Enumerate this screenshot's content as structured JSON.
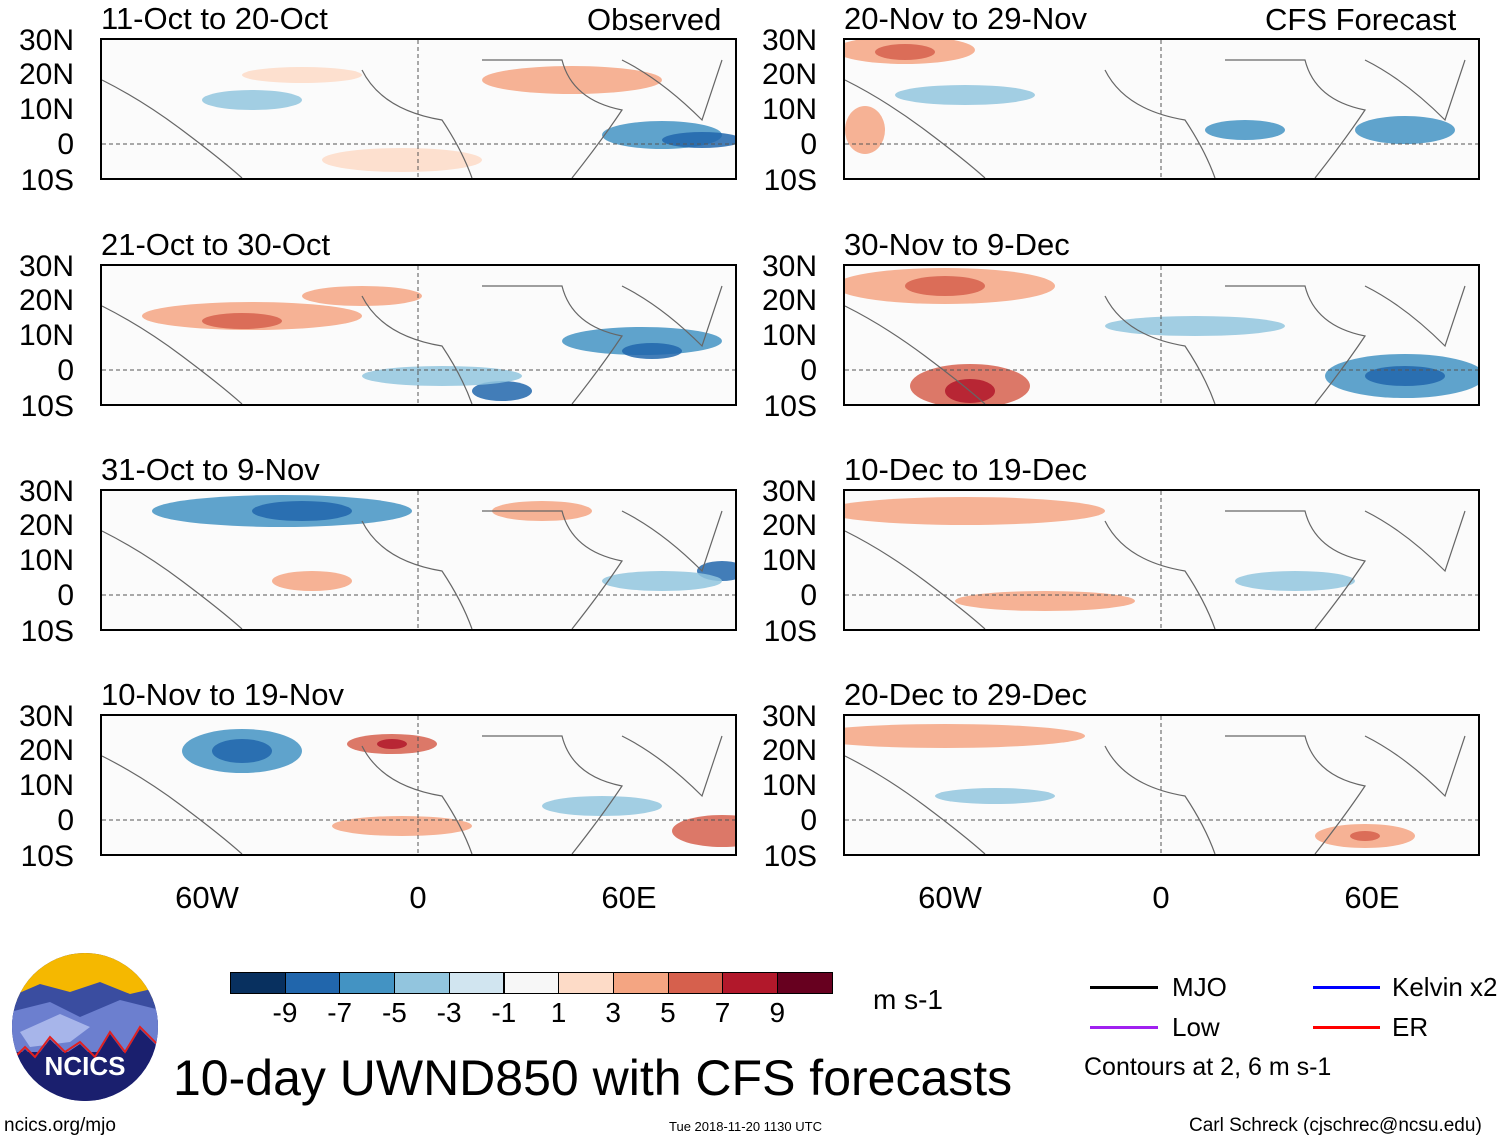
{
  "figure": {
    "title": "10-day UWND850 with CFS forecasts",
    "url": "ncics.org/mjo",
    "timestamp": "Tue 2018-11-20 1130 UTC",
    "author": "Carl Schreck (cjschrec@ncsu.edu)",
    "logo_text": "NCICS"
  },
  "columns": {
    "left_label": "Observed",
    "right_label": "CFS Forecast"
  },
  "panels": [
    {
      "title": "11-Oct to 20-Oct",
      "type": "observed"
    },
    {
      "title": "21-Oct to 30-Oct",
      "type": "observed"
    },
    {
      "title": "31-Oct to 9-Nov",
      "type": "observed"
    },
    {
      "title": "10-Nov to 19-Nov",
      "type": "observed"
    },
    {
      "title": "20-Nov to 29-Nov",
      "type": "forecast"
    },
    {
      "title": "30-Nov to 9-Dec",
      "type": "forecast"
    },
    {
      "title": "10-Dec to 19-Dec",
      "type": "forecast"
    },
    {
      "title": "20-Dec to 29-Dec",
      "type": "forecast"
    }
  ],
  "axes": {
    "lat_labels": [
      "30N",
      "20N",
      "10N",
      "0",
      "10S"
    ],
    "lon_labels": [
      "60W",
      "0",
      "60E"
    ],
    "lat_range": [
      -10,
      30
    ],
    "lon_range": [
      -90,
      90
    ]
  },
  "colorbar": {
    "units": "m s-1",
    "labels": [
      "-9",
      "-7",
      "-5",
      "-3",
      "-1",
      "1",
      "3",
      "5",
      "7",
      "9"
    ],
    "colors": [
      "#08305f",
      "#2166ac",
      "#4393c3",
      "#92c5de",
      "#d1e5f0",
      "#f7f7f7",
      "#fddbc7",
      "#f4a582",
      "#d6604d",
      "#b2182b",
      "#67001f"
    ]
  },
  "legend": {
    "items": [
      {
        "label": "MJO",
        "color": "#000000"
      },
      {
        "label": "Low",
        "color": "#a020f0"
      },
      {
        "label": "Kelvin x2",
        "color": "#0000ff"
      },
      {
        "label": "ER",
        "color": "#ff0000"
      }
    ],
    "note": "Contours at 2, 6 m s-1"
  }
}
